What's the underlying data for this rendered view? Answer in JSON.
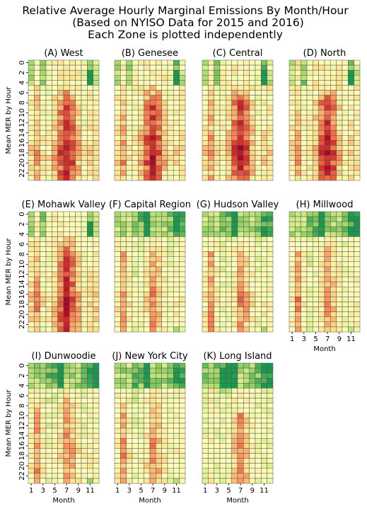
{
  "figure": {
    "title_lines": [
      "Relative Average Hourly Marginal Emissions By Month/Hour",
      "(Based on NYISO Data for 2015 and 2016)",
      "Each Zone is plotted independently"
    ]
  },
  "chart_data": {
    "type": "heatmap",
    "xlabel": "Month",
    "ylabel": "Mean MER by Hour",
    "x_ticks": [
      "1",
      "3",
      "5",
      "7",
      "9",
      "11"
    ],
    "y_ticks": [
      "0",
      "2",
      "4",
      "6",
      "8",
      "10",
      "12",
      "14",
      "16",
      "18",
      "20",
      "22"
    ],
    "colormap": [
      "#1a9850",
      "#91cf60",
      "#d9ef8b",
      "#ffffbf",
      "#fee08b",
      "#fc8d59",
      "#d73027",
      "#a50026"
    ],
    "value_range": [
      0,
      1
    ],
    "panels": [
      {
        "title": "(A) West",
        "profile": "upstate",
        "seed": 11
      },
      {
        "title": "(B) Genesee",
        "profile": "upstate",
        "seed": 23
      },
      {
        "title": "(C) Central",
        "profile": "upstate",
        "seed": 37
      },
      {
        "title": "(D) North",
        "profile": "upstate",
        "seed": 41
      },
      {
        "title": "(E) Mohawk Valley",
        "profile": "upstate",
        "seed": 53
      },
      {
        "title": "(F) Capital Region",
        "profile": "downstate",
        "seed": 61
      },
      {
        "title": "(G) Hudson Valley",
        "profile": "downstate",
        "seed": 73
      },
      {
        "title": "(H) Millwood",
        "profile": "downstate",
        "seed": 83
      },
      {
        "title": "(I) Dunwoodie",
        "profile": "downstate",
        "seed": 97
      },
      {
        "title": "(J) New York City",
        "profile": "downstate",
        "seed": 101
      },
      {
        "title": "(K) Long Island",
        "profile": "island",
        "seed": 113
      }
    ]
  }
}
